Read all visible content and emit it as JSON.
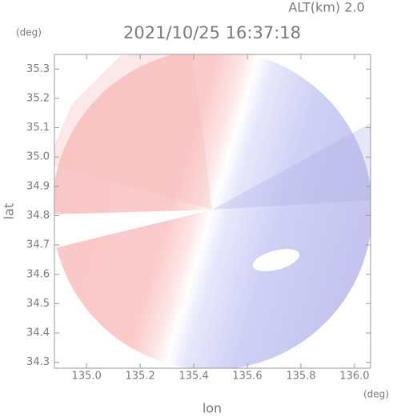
{
  "chart_data": {
    "type": "radar-map",
    "title": "2021/10/25 16:37:18",
    "annotation": "ALT(km) 2.0",
    "y_unit": "(deg)",
    "x_unit": "(deg)",
    "xlabel": "lon",
    "ylabel": "lat",
    "xlim": [
      134.88,
      136.06
    ],
    "ylim": [
      34.28,
      35.35
    ],
    "xticks": [
      {
        "value": 135,
        "label": "135.0"
      },
      135.2,
      135.4,
      135.6,
      135.8,
      {
        "value": 136,
        "label": "136.0"
      }
    ],
    "yticks": [
      34.3,
      34.4,
      34.5,
      34.6,
      34.7,
      34.8,
      34.9,
      {
        "value": 35,
        "label": "35.0"
      },
      35.1,
      35.2,
      35.3
    ]
  }
}
